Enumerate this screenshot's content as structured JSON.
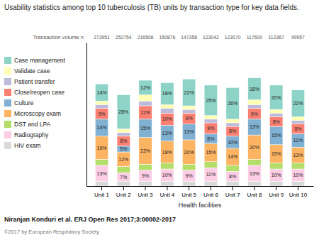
{
  "chart_data": {
    "type": "bar",
    "stacked": true,
    "title": "Usability statistics among top 10 tuberculosis (TB) units by transaction type for key data fields.",
    "xlabel": "Health facilities",
    "categories": [
      "Unit 1",
      "Unit 2",
      "Unit 3",
      "Unit 4",
      "Unit 5",
      "Unit 6",
      "Unit 7",
      "Unit 8",
      "Unit 9",
      "Unit 10"
    ],
    "ylim": [
      0,
      118
    ],
    "tick_labels": "x",
    "grid": false,
    "legend": "left",
    "data_labels": true,
    "series": [
      {
        "name": "Case management",
        "values": [
          14,
          28,
          12,
          18,
          22,
          25,
          26,
          18,
          20,
          22
        ],
        "value_labels": [
          "14%",
          "28%",
          "12%",
          "18%",
          "22%",
          "25%",
          "26%",
          "18%",
          "20%",
          "22%"
        ]
      },
      {
        "name": "Validate case",
        "values": [
          3,
          3,
          5,
          3,
          3,
          3,
          3,
          4,
          3,
          3
        ]
      },
      {
        "name": "Patient transfer",
        "values": [
          3,
          3,
          4,
          4,
          3,
          3,
          3,
          3,
          3,
          3
        ]
      },
      {
        "name": "Close/reopen case",
        "values": [
          9,
          8,
          11,
          10,
          9,
          9,
          8,
          9,
          8,
          8
        ],
        "value_labels": [
          "9%",
          "8%",
          "11%",
          "10%",
          "9%",
          "9%",
          "8%",
          "9%",
          "8%",
          "8%"
        ]
      },
      {
        "name": "Culture",
        "values": [
          14,
          5,
          15,
          13,
          13,
          8,
          10,
          13,
          15,
          11
        ],
        "value_labels": [
          "14%",
          "5%",
          "15%",
          "13%",
          "13%",
          "8%",
          "10%",
          "13%",
          "15%",
          "11%"
        ]
      },
      {
        "name": "Microscopy exam",
        "values": [
          19,
          12,
          22,
          18,
          20,
          15,
          14,
          20,
          15,
          13
        ],
        "value_labels": [
          "19%",
          "12%",
          "22%",
          "18%",
          "20%",
          "15%",
          "14%",
          "20%",
          "15%",
          "13%"
        ]
      },
      {
        "name": "DST and LPA",
        "values": [
          5,
          5,
          5,
          5,
          5,
          5,
          5,
          5,
          5,
          5
        ]
      },
      {
        "name": "Radiography",
        "values": [
          13,
          7,
          9,
          10,
          9,
          11,
          8,
          13,
          10,
          10
        ],
        "value_labels": [
          "13%",
          "7%",
          "9%",
          "10%",
          "9%",
          "11%",
          "8%",
          "13%",
          "10%",
          "10%"
        ]
      },
      {
        "name": "HIV exam",
        "values": [
          4,
          4,
          4,
          4,
          4,
          4,
          4,
          4,
          4,
          4
        ]
      }
    ],
    "transaction_label": "Transaction volume n",
    "transaction_volumes": [
      273951,
      252754,
      216508,
      150876,
      147358,
      123042,
      123070,
      117600,
      112367,
      99957
    ],
    "citation": "Niranjan Konduri et al. ERJ Open Res 2017;3:00002-2017",
    "copyright": "©2017 by European Respiratory Society"
  }
}
